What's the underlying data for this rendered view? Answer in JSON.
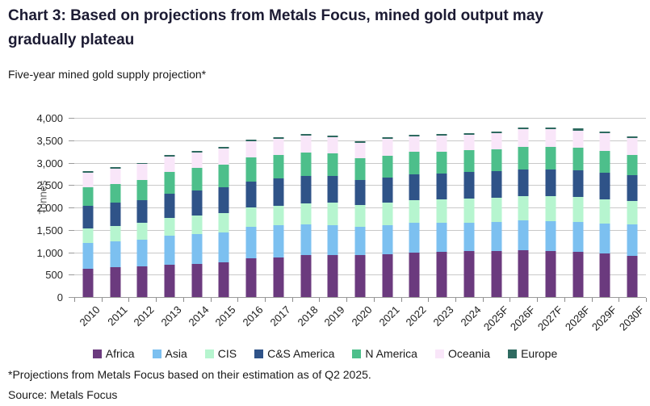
{
  "header": {
    "title": "Chart 3: Based on projections from Metals Focus, mined gold output may gradually plateau",
    "subtitle": "Five-year mined gold supply projection*"
  },
  "chart_data": {
    "type": "bar",
    "stacked": true,
    "title": "Five-year mined gold supply projection",
    "ylabel": "Tonnes",
    "xlabel": "",
    "ylim": [
      0,
      4000
    ],
    "ytick_step": 500,
    "grid": true,
    "legend_position": "bottom",
    "categories": [
      "2010",
      "2011",
      "2012",
      "2013",
      "2014",
      "2015",
      "2016",
      "2017",
      "2018",
      "2019",
      "2020",
      "2021",
      "2022",
      "2023",
      "2024",
      "2025F",
      "2026F",
      "2027F",
      "2028F",
      "2029F",
      "2030F"
    ],
    "series": [
      {
        "name": "Africa",
        "color": "#6b3a7e",
        "values": [
          630,
          665,
          690,
          715,
          740,
          770,
          860,
          890,
          930,
          945,
          930,
          950,
          1000,
          1010,
          1020,
          1030,
          1040,
          1030,
          1015,
          980,
          920
        ]
      },
      {
        "name": "Asia",
        "color": "#7cc0f0",
        "values": [
          570,
          585,
          595,
          650,
          660,
          680,
          700,
          710,
          690,
          665,
          640,
          650,
          650,
          645,
          645,
          655,
          665,
          665,
          655,
          660,
          700
        ]
      },
      {
        "name": "CIS",
        "color": "#b6f5cf",
        "values": [
          330,
          345,
          365,
          400,
          420,
          430,
          440,
          445,
          470,
          490,
          480,
          500,
          515,
          520,
          530,
          540,
          550,
          555,
          560,
          545,
          530
        ]
      },
      {
        "name": "C&S America",
        "color": "#2f5388",
        "values": [
          500,
          505,
          520,
          545,
          565,
          570,
          585,
          600,
          610,
          600,
          555,
          570,
          570,
          580,
          590,
          590,
          600,
          600,
          600,
          590,
          565
        ]
      },
      {
        "name": "N America",
        "color": "#4dbf8b",
        "values": [
          420,
          425,
          435,
          475,
          490,
          500,
          525,
          520,
          525,
          510,
          500,
          490,
          500,
          495,
          490,
          490,
          500,
          500,
          500,
          490,
          455
        ]
      },
      {
        "name": "Oceania",
        "color": "#f9e6f9",
        "values": [
          330,
          345,
          360,
          350,
          345,
          360,
          365,
          370,
          380,
          355,
          340,
          365,
          355,
          350,
          345,
          355,
          385,
          390,
          390,
          395,
          375
        ]
      },
      {
        "name": "Europe",
        "color": "#2e6a60",
        "values": [
          30,
          30,
          30,
          35,
          35,
          35,
          35,
          35,
          35,
          35,
          35,
          35,
          40,
          40,
          40,
          40,
          40,
          40,
          40,
          40,
          35
        ]
      }
    ]
  },
  "footnotes": {
    "projection_note": "*Projections from Metals Focus based on their estimation as of Q2 2025.",
    "source": "Source: Metals Focus"
  }
}
